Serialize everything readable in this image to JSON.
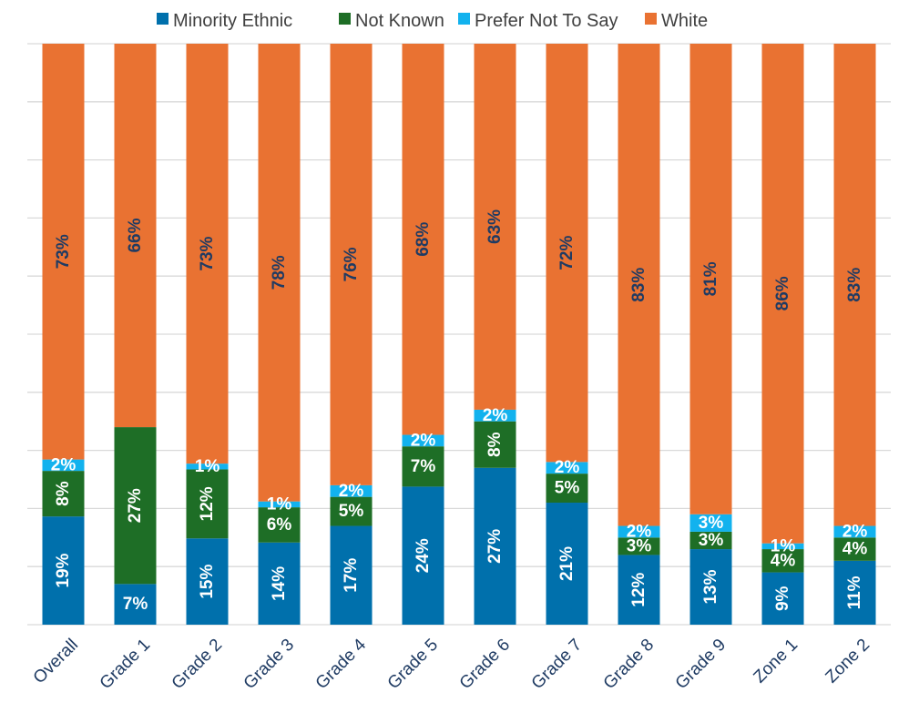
{
  "chart_data": {
    "type": "bar",
    "stacked": true,
    "percent_stacked": true,
    "orientation": "vertical",
    "title": "",
    "xlabel": "",
    "ylabel": "",
    "ylim": [
      0,
      100
    ],
    "grid": "horizontal gridlines on",
    "y_tick_labels_shown": false,
    "legend_position": "top",
    "categories": [
      "Overall",
      "Grade 1",
      "Grade 2",
      "Grade 3",
      "Grade 4",
      "Grade 5",
      "Grade 6",
      "Grade 7",
      "Grade 8",
      "Grade 9",
      "Zone 1",
      "Zone 2"
    ],
    "series": [
      {
        "name": "Minority Ethnic",
        "color": "#0070ac",
        "label_color": "#ffffff",
        "values": [
          19,
          7,
          15,
          14,
          17,
          24,
          27,
          21,
          12,
          13,
          9,
          11
        ],
        "labels": [
          "19%",
          "7%",
          "15%",
          "14%",
          "17%",
          "24%",
          "27%",
          "21%",
          "12%",
          "13%",
          "9%",
          "11%"
        ]
      },
      {
        "name": "Not Known",
        "color": "#1e6e26",
        "label_color": "#ffffff",
        "values": [
          8,
          27,
          12,
          6,
          5,
          7,
          8,
          5,
          3,
          3,
          4,
          4
        ],
        "labels": [
          "8%",
          "27%",
          "12%",
          "6%",
          "5%",
          "7%",
          "8%",
          "5%",
          "3%",
          "3%",
          "4%",
          "4%"
        ]
      },
      {
        "name": "Prefer Not To Say",
        "color": "#12b2ee",
        "label_color": "#ffffff",
        "values": [
          2,
          0,
          1,
          1,
          2,
          2,
          2,
          2,
          2,
          3,
          1,
          2
        ],
        "labels": [
          "2%",
          "",
          "1%",
          "1%",
          "2%",
          "2%",
          "2%",
          "2%",
          "2%",
          "3%",
          "1%",
          "2%"
        ]
      },
      {
        "name": "White",
        "color": "#e97232",
        "label_color": "#1f3b63",
        "values": [
          73,
          66,
          73,
          78,
          76,
          68,
          63,
          72,
          83,
          81,
          86,
          83
        ],
        "labels": [
          "73%",
          "66%",
          "73%",
          "78%",
          "76%",
          "68%",
          "63%",
          "72%",
          "83%",
          "81%",
          "86%",
          "83%"
        ]
      }
    ]
  }
}
